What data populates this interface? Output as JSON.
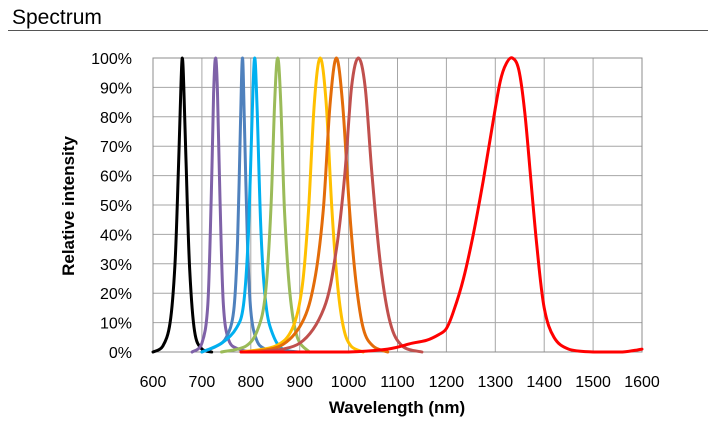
{
  "section": {
    "title": "Spectrum"
  },
  "chart_data": {
    "type": "line",
    "title": "",
    "xlabel": "Wavelength (nm)",
    "ylabel": "Relative intensity",
    "xlim": [
      600,
      1600
    ],
    "ylim": [
      0,
      100
    ],
    "x_ticks": [
      "600",
      "700",
      "800",
      "900",
      "1000",
      "1100",
      "1200",
      "1300",
      "1400",
      "1500",
      "1600"
    ],
    "y_ticks": [
      "0%",
      "10%",
      "20%",
      "30%",
      "40%",
      "50%",
      "60%",
      "70%",
      "80%",
      "90%",
      "100%"
    ],
    "grid": true,
    "legend": false,
    "series": [
      {
        "color": "#000000",
        "peak": 660,
        "fwhm": 18,
        "x": [
          600,
          620,
          635,
          645,
          652,
          657,
          660,
          663,
          668,
          675,
          685,
          700,
          720
        ],
        "y": [
          0,
          2,
          10,
          30,
          62,
          90,
          100,
          90,
          62,
          28,
          7,
          1,
          0
        ]
      },
      {
        "color": "#7f62a8",
        "peak": 728,
        "fwhm": 18,
        "x": [
          680,
          700,
          712,
          719,
          724,
          728,
          732,
          737,
          744,
          755,
          775,
          800
        ],
        "y": [
          0,
          3,
          16,
          52,
          88,
          100,
          88,
          52,
          16,
          4,
          1,
          0
        ]
      },
      {
        "color": "#4f81bd",
        "peak": 783,
        "fwhm": 20,
        "x": [
          700,
          730,
          750,
          765,
          773,
          779,
          783,
          787,
          793,
          800,
          812,
          830,
          860
        ],
        "y": [
          0,
          2,
          5,
          14,
          38,
          78,
          100,
          78,
          38,
          14,
          4,
          1,
          0
        ]
      },
      {
        "color": "#00b0f0",
        "peak": 808,
        "fwhm": 22,
        "x": [
          700,
          740,
          770,
          785,
          795,
          803,
          808,
          813,
          821,
          831,
          845,
          865,
          900
        ],
        "y": [
          0,
          3,
          8,
          16,
          40,
          82,
          100,
          82,
          40,
          16,
          6,
          1,
          0
        ]
      },
      {
        "color": "#9bbb59",
        "peak": 855,
        "fwhm": 24,
        "x": [
          740,
          790,
          815,
          830,
          841,
          849,
          855,
          861,
          869,
          880,
          895,
          920
        ],
        "y": [
          0,
          2,
          8,
          20,
          48,
          86,
          100,
          86,
          48,
          20,
          5,
          0
        ]
      },
      {
        "color": "#ffc000",
        "peak": 942,
        "fwhm": 35,
        "x": [
          780,
          850,
          885,
          905,
          918,
          930,
          942,
          954,
          966,
          978,
          990,
          1005,
          1030
        ],
        "y": [
          0,
          2,
          8,
          22,
          48,
          85,
          100,
          85,
          48,
          22,
          8,
          2,
          0
        ]
      },
      {
        "color": "#e36c09",
        "peak": 975,
        "fwhm": 40,
        "x": [
          790,
          860,
          905,
          930,
          948,
          962,
          975,
          988,
          1002,
          1015,
          1030,
          1050,
          1080
        ],
        "y": [
          0,
          2,
          10,
          24,
          48,
          84,
          100,
          84,
          48,
          24,
          8,
          2,
          0
        ]
      },
      {
        "color": "#c0504d",
        "peak": 1020,
        "fwhm": 45,
        "x": [
          820,
          900,
          950,
          975,
          992,
          1006,
          1020,
          1034,
          1048,
          1065,
          1085,
          1110,
          1150
        ],
        "y": [
          0,
          3,
          15,
          35,
          60,
          90,
          100,
          90,
          60,
          30,
          10,
          2,
          0
        ]
      },
      {
        "color": "#ff0000",
        "peak": 1335,
        "fwhm": 90,
        "x": [
          780,
          900,
          1000,
          1080,
          1130,
          1160,
          1185,
          1200,
          1215,
          1235,
          1255,
          1275,
          1295,
          1310,
          1322,
          1335,
          1348,
          1360,
          1372,
          1385,
          1400,
          1420,
          1450,
          1500,
          1560,
          1600
        ],
        "y": [
          0,
          0,
          0,
          1,
          3,
          4,
          6,
          8,
          14,
          25,
          40,
          58,
          78,
          92,
          98,
          100,
          96,
          82,
          60,
          36,
          15,
          5,
          1,
          0,
          0,
          1
        ]
      }
    ]
  }
}
